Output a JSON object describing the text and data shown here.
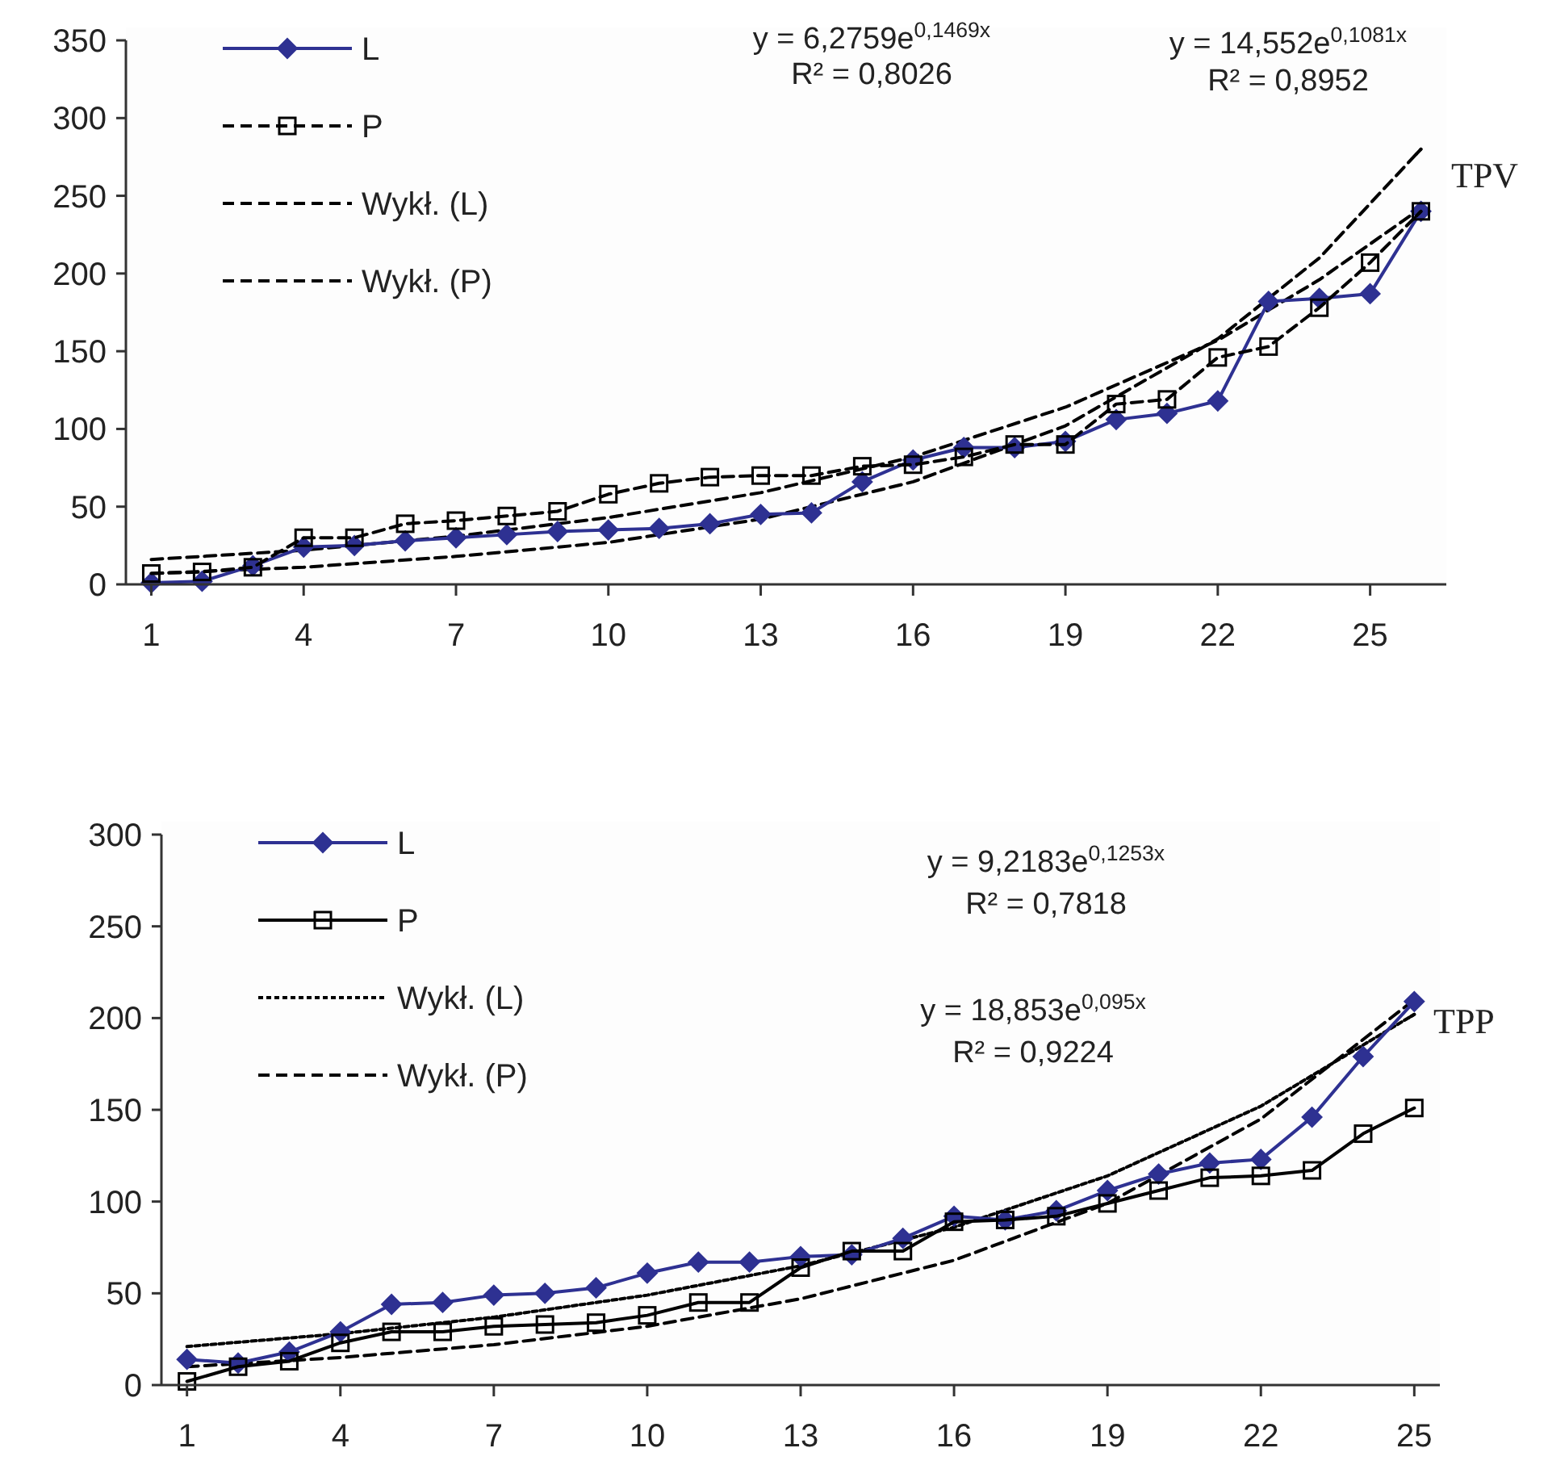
{
  "chart_data": [
    {
      "type": "line",
      "xlim": [
        0.5,
        26.5
      ],
      "ylim": [
        0,
        350
      ],
      "yticks": [
        0,
        50,
        100,
        150,
        200,
        250,
        300,
        350
      ],
      "xticks": [
        1,
        4,
        7,
        10,
        13,
        16,
        19,
        22,
        25
      ],
      "x": [
        1,
        2,
        3,
        4,
        5,
        6,
        7,
        8,
        9,
        10,
        11,
        12,
        13,
        14,
        15,
        16,
        17,
        18,
        19,
        20,
        21,
        22,
        23,
        24,
        25,
        26
      ],
      "grid": false,
      "legend": "top left",
      "series": [
        {
          "name": "L",
          "color": "#2e3192",
          "marker": "diamond",
          "line_style": "solid",
          "values": [
            1,
            2,
            12,
            24,
            25,
            28,
            30,
            32,
            34,
            35,
            36,
            39,
            45,
            46,
            66,
            80,
            88,
            88,
            92,
            106,
            110,
            118,
            182,
            184,
            187,
            240
          ]
        },
        {
          "name": "P",
          "color": "#000000",
          "marker": "square",
          "line_style": "dashed",
          "values": [
            7,
            8,
            11,
            30,
            30,
            39,
            41,
            44,
            47,
            58,
            65,
            69,
            70,
            70,
            76,
            77,
            82,
            90,
            90,
            116,
            119,
            146,
            153,
            178,
            207,
            240
          ]
        },
        {
          "name": "Wykł. (L)",
          "color": "#000000",
          "marker": "none",
          "line_style": "dashed",
          "x": [
            1,
            4,
            7,
            10,
            13,
            16,
            19,
            22,
            24,
            26
          ],
          "values": [
            7,
            11,
            18,
            27,
            42,
            66,
            102,
            158,
            210,
            280
          ]
        },
        {
          "name": "Wykł. (P)",
          "color": "#000000",
          "marker": "none",
          "line_style": "dashed",
          "x": [
            1,
            4,
            7,
            10,
            13,
            16,
            19,
            22,
            24,
            26
          ],
          "values": [
            16,
            22,
            31,
            43,
            59,
            82,
            114,
            157,
            196,
            242
          ]
        }
      ],
      "annotations": [
        "y = 6,2759e$^{0,1469x}$",
        "R² = 0,8026",
        "y = 14,552e$^{0,1081x}$",
        "R² = 0,8952",
        "TPV"
      ]
    },
    {
      "type": "line",
      "xlim": [
        0.5,
        25.5
      ],
      "ylim": [
        0,
        300
      ],
      "yticks": [
        0,
        50,
        100,
        150,
        200,
        250,
        300
      ],
      "xticks": [
        1,
        4,
        7,
        10,
        13,
        16,
        19,
        22,
        25
      ],
      "x": [
        1,
        2,
        3,
        4,
        5,
        6,
        7,
        8,
        9,
        10,
        11,
        12,
        13,
        14,
        15,
        16,
        17,
        18,
        19,
        20,
        21,
        22,
        23,
        24,
        25
      ],
      "grid": false,
      "legend": "top left",
      "series": [
        {
          "name": "L",
          "color": "#2e3192",
          "marker": "diamond",
          "line_style": "solid",
          "values": [
            14,
            12,
            18,
            29,
            44,
            45,
            49,
            50,
            53,
            61,
            67,
            67,
            70,
            71,
            80,
            92,
            90,
            95,
            106,
            115,
            121,
            123,
            146,
            179,
            209
          ]
        },
        {
          "name": "P",
          "color": "#000000",
          "marker": "square",
          "line_style": "solid",
          "values": [
            2,
            10,
            13,
            23,
            29,
            29,
            32,
            33,
            34,
            38,
            45,
            45,
            64,
            73,
            73,
            89,
            90,
            92,
            99,
            106,
            113,
            114,
            117,
            137,
            151
          ]
        },
        {
          "name": "Wykł. (L)",
          "color": "#000000",
          "marker": "none",
          "line_style": "dotted",
          "x": [
            1,
            4,
            7,
            10,
            13,
            16,
            19,
            22,
            25
          ],
          "values": [
            21,
            28,
            37,
            49,
            65,
            86,
            114,
            152,
            202
          ]
        },
        {
          "name": "Wykł. (P)",
          "color": "#000000",
          "marker": "none",
          "line_style": "dashed",
          "x": [
            1,
            4,
            7,
            10,
            13,
            16,
            19,
            22,
            25
          ],
          "values": [
            10,
            15,
            22,
            32,
            47,
            68,
            99,
            145,
            210
          ]
        }
      ],
      "annotations": [
        "y = 9,2183e$^{0,1253x}$",
        "R² = 0,7818",
        "y = 18,853e$^{0,095x}$",
        "R² = 0,9224",
        "TPP"
      ]
    }
  ]
}
